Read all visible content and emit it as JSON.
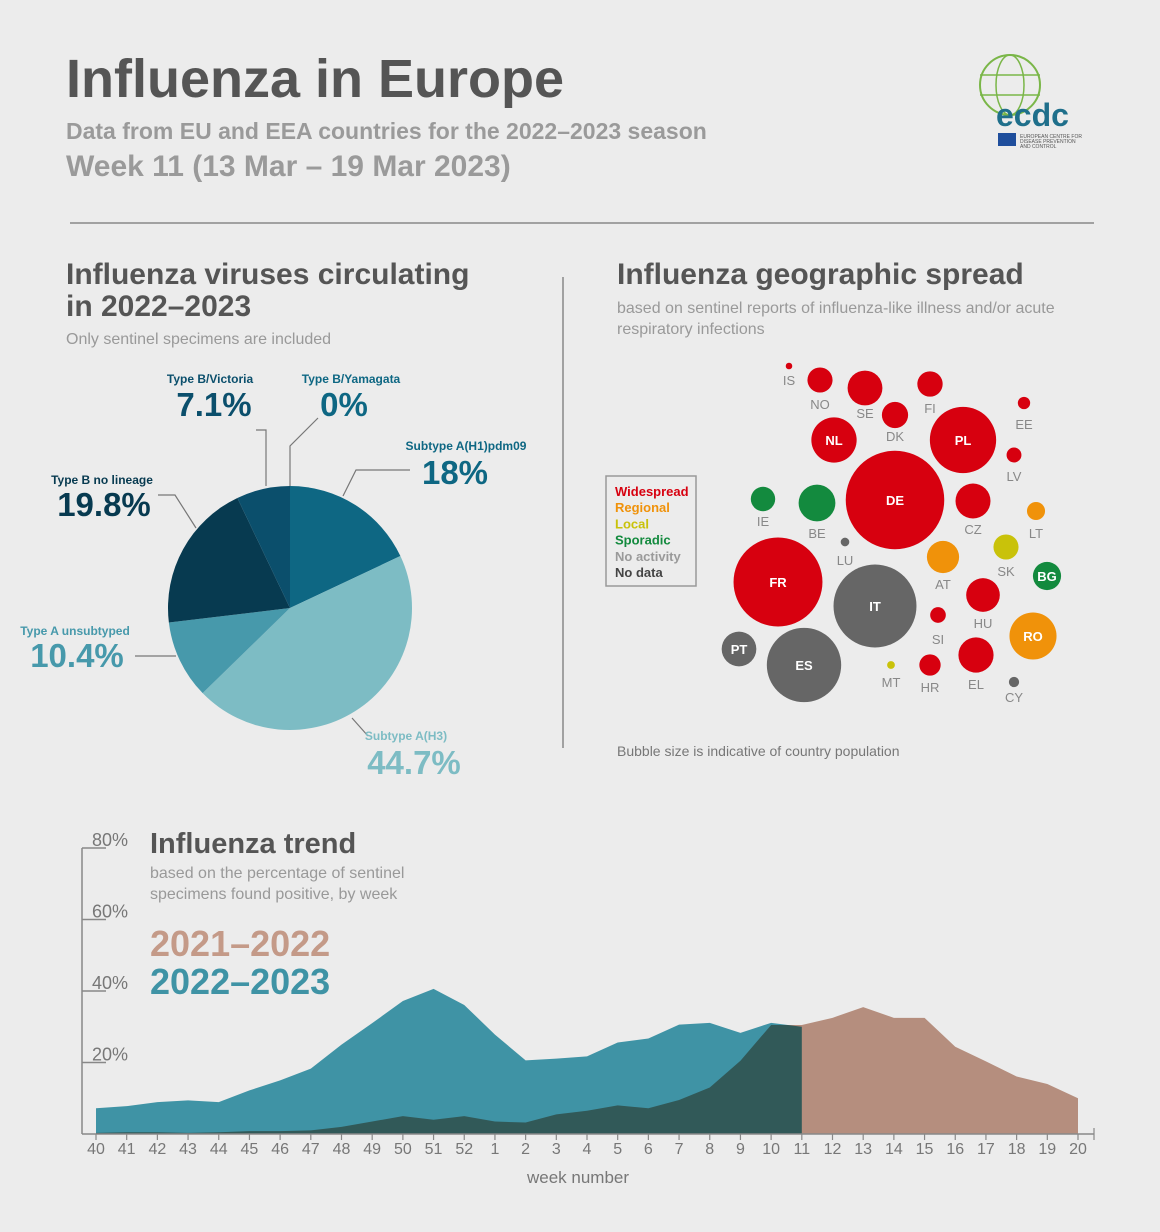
{
  "header": {
    "title": "Influenza in Europe",
    "subtitle": "Data from EU and EEA countries for the 2022–2023 season",
    "week": "Week 11 (13 Mar – 19 Mar 2023)",
    "logo": {
      "name": "ecdc",
      "lines": [
        "EUROPEAN CENTRE FOR",
        "DISEASE PREVENTION",
        "AND CONTROL"
      ]
    }
  },
  "chart_data": [
    {
      "type": "pie",
      "title": [
        "Influenza viruses circulating",
        "in 2022–2023"
      ],
      "subtitle": "Only sentinel specimens are included",
      "categories": [
        "Subtype A(H1)pdm09",
        "Subtype A(H3)",
        "Type A unsubtyped",
        "Type B no lineage",
        "Type B/Victoria",
        "Type B/Yamagata"
      ],
      "values": [
        18,
        44.7,
        10.4,
        19.8,
        7.1,
        0
      ],
      "value_labels": [
        "18%",
        "44.7%",
        "10.4%",
        "19.8%",
        "7.1%",
        "0%"
      ],
      "colors": [
        "#0e6783",
        "#7dbcc4",
        "#4799ab",
        "#073a50",
        "#0b4f6c",
        "#083448"
      ]
    },
    {
      "type": "bubble",
      "title": "Influenza geographic spread",
      "subtitle": [
        "based on sentinel reports of influenza-like illness and/or acute",
        "respiratory infections"
      ],
      "note": "Bubble size is indicative of country population",
      "legend": [
        {
          "name": "Widespread",
          "color": "#d7000f"
        },
        {
          "name": "Regional",
          "color": "#f0920a"
        },
        {
          "name": "Local",
          "color": "#c9c20a"
        },
        {
          "name": "Sporadic",
          "color": "#138a3e"
        },
        {
          "name": "No activity",
          "color": "#9a9a9a"
        },
        {
          "name": "No data",
          "color": "#666666"
        }
      ],
      "countries": [
        "IS",
        "NO",
        "SE",
        "FI",
        "DK",
        "EE",
        "NL",
        "PL",
        "LV",
        "DE",
        "IE",
        "BE",
        "LU",
        "CZ",
        "LT",
        "FR",
        "IT",
        "AT",
        "SK",
        "BG",
        "SI",
        "HU",
        "RO",
        "PT",
        "ES",
        "MT",
        "HR",
        "EL",
        "CY"
      ],
      "population": [
        0.37,
        5.4,
        10.4,
        5.5,
        5.9,
        1.3,
        17.6,
        37.7,
        1.9,
        83.2,
        5.1,
        11.6,
        0.64,
        10.5,
        2.8,
        67.8,
        59.0,
        8.9,
        5.4,
        6.8,
        2.1,
        9.7,
        19.0,
        10.3,
        47.4,
        0.52,
        3.9,
        10.6,
        0.9
      ],
      "level": [
        "Widespread",
        "Widespread",
        "Widespread",
        "Widespread",
        "Widespread",
        "Widespread",
        "Widespread",
        "Widespread",
        "Widespread",
        "Widespread",
        "Sporadic",
        "Sporadic",
        "No data",
        "Widespread",
        "Regional",
        "Widespread",
        "No data",
        "Regional",
        "Local",
        "Sporadic",
        "Widespread",
        "Widespread",
        "Regional",
        "No data",
        "No data",
        "Local",
        "Widespread",
        "Widespread",
        "No data"
      ]
    },
    {
      "type": "area",
      "title": "Influenza trend",
      "subtitle": [
        "based on the percentage of sentinel",
        "specimens found positive, by week"
      ],
      "x_label": "week number",
      "categories": [
        "40",
        "41",
        "42",
        "43",
        "44",
        "45",
        "46",
        "47",
        "48",
        "49",
        "50",
        "51",
        "52",
        "1",
        "2",
        "3",
        "4",
        "5",
        "6",
        "7",
        "8",
        "9",
        "10",
        "11",
        "12",
        "13",
        "14",
        "15",
        "16",
        "17",
        "18",
        "19",
        "20"
      ],
      "series": [
        {
          "name": "2021–2022",
          "color": "#c49a88",
          "values": [
            0.3,
            0.5,
            0.5,
            0.3,
            0.5,
            0.8,
            0.8,
            1,
            2,
            3.5,
            5,
            4,
            5,
            3.5,
            3.2,
            5.5,
            6.5,
            8,
            7.2,
            9.5,
            13,
            20.5,
            30.5,
            30.5,
            32.5,
            35.5,
            32.5,
            32.5,
            24.4,
            20.3,
            16.1,
            14,
            10
          ]
        },
        {
          "name": "2022–2023",
          "color": "#3f93a5",
          "values": [
            7.2,
            7.8,
            8.9,
            9.4,
            8.9,
            12.2,
            15,
            18.3,
            25,
            31,
            37.2,
            40.6,
            36.1,
            27.8,
            20.6,
            21.1,
            21.7,
            25.6,
            26.7,
            30.6,
            31.1,
            28.3,
            31.1,
            30,
            null,
            null,
            null,
            null,
            null,
            null,
            null,
            null,
            null
          ]
        }
      ],
      "ylim": [
        0,
        80
      ],
      "yticks": [
        {
          "value": 20,
          "label": "20%"
        },
        {
          "value": 40,
          "label": "40%"
        },
        {
          "value": 60,
          "label": "60%"
        },
        {
          "value": 80,
          "label": "80%"
        }
      ]
    }
  ]
}
